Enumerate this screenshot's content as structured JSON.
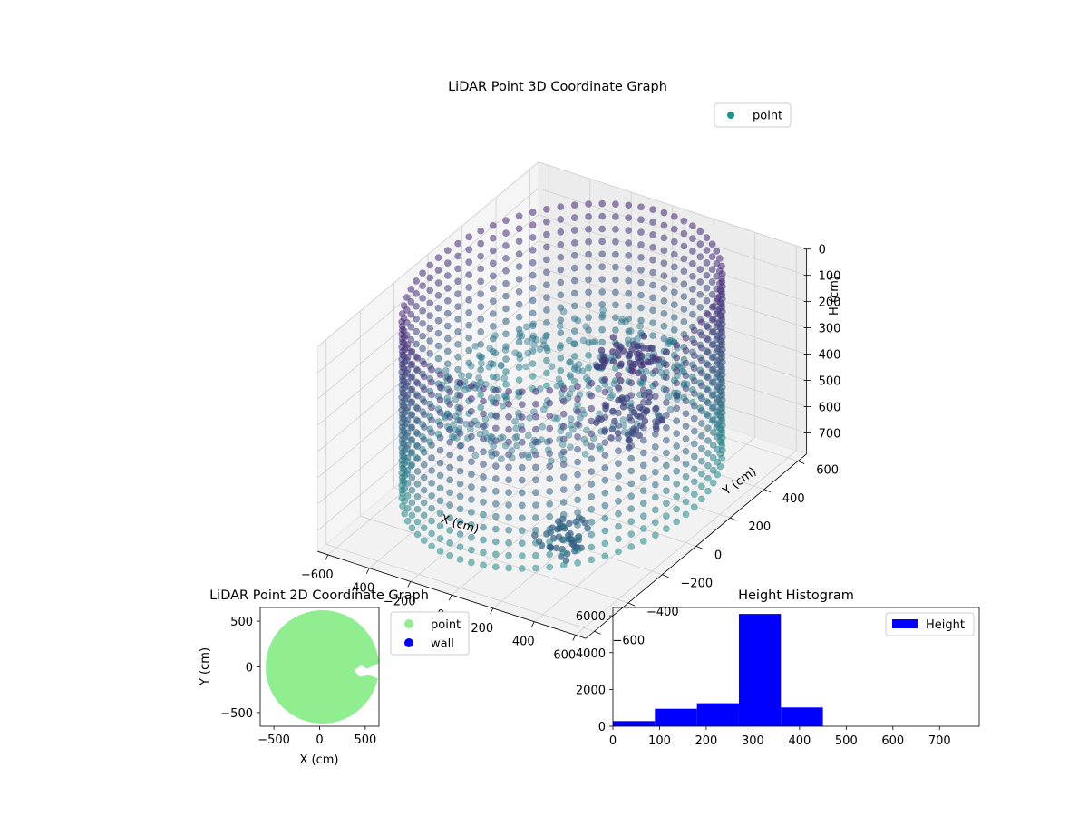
{
  "chart_data": [
    {
      "type": "scatter",
      "projection": "3d",
      "title": "LiDAR Point 3D Coordinate Graph",
      "xlabel": "X (cm)",
      "ylabel": "Y (cm)",
      "zlabel": "H (cm)",
      "xlim": [
        -650,
        650
      ],
      "ylim": [
        -650,
        650
      ],
      "zlim": [
        780,
        0
      ],
      "z_axis_inverted": true,
      "xticks": [
        -600,
        -400,
        -200,
        0,
        200,
        400,
        600
      ],
      "yticks": [
        -600,
        -400,
        -200,
        0,
        200,
        400,
        600
      ],
      "zticks": [
        0,
        100,
        200,
        300,
        400,
        500,
        600,
        700
      ],
      "legend": {
        "entries": [
          "point"
        ],
        "placement": "top-right"
      },
      "colors": {
        "point_marker": "#21918c",
        "colormap": "viridis-purple-teal"
      },
      "grid": true,
      "series": [
        {
          "name": "point",
          "wall": {
            "shape": "circle",
            "radius": 600,
            "z_min": 0,
            "z_max": 700,
            "color_at_top": "#482878",
            "color_at_bottom": "#21918c"
          },
          "floor_disc": {
            "radius": 480,
            "z": 340
          },
          "clusters": [
            {
              "x": 260,
              "y": 80,
              "z": 200,
              "spread": 90
            },
            {
              "x": 380,
              "y": -60,
              "z": 330,
              "spread": 110
            },
            {
              "x": 320,
              "y": -380,
              "z": 620,
              "spread": 90
            }
          ]
        }
      ]
    },
    {
      "type": "scatter",
      "title": "LiDAR Point 2D Coordinate Graph",
      "xlabel": "X (cm)",
      "ylabel": "Y (cm)",
      "xlim": [
        -650,
        650
      ],
      "ylim": [
        -650,
        650
      ],
      "xticks": [
        -500,
        0,
        500
      ],
      "yticks": [
        500,
        0,
        -500
      ],
      "legend": {
        "entries": [
          "point",
          "wall"
        ],
        "placement": "outside-right"
      },
      "colors": {
        "point": "#90ee90",
        "wall": "#0000ff"
      },
      "series": [
        {
          "name": "point",
          "shape": "filled-disc",
          "center": [
            0,
            0
          ],
          "radius": 620,
          "gap": {
            "x": [
              380,
              650
            ],
            "y": [
              -130,
              20
            ]
          }
        },
        {
          "name": "wall"
        }
      ]
    },
    {
      "type": "bar",
      "title": "Height Histogram",
      "xlim": [
        0,
        785
      ],
      "ylim": [
        0,
        6450
      ],
      "xticks": [
        0,
        100,
        200,
        300,
        400,
        500,
        600,
        700
      ],
      "yticks": [
        0,
        2000,
        4000,
        6000
      ],
      "legend": {
        "entries": [
          "Height"
        ],
        "placement": "top-right"
      },
      "colors": {
        "bar": "#0000ff"
      },
      "series": [
        {
          "name": "Height",
          "bins": [
            {
              "x0": 0,
              "x1": 90,
              "value": 280
            },
            {
              "x0": 90,
              "x1": 180,
              "value": 950
            },
            {
              "x0": 180,
              "x1": 270,
              "value": 1250
            },
            {
              "x0": 270,
              "x1": 360,
              "value": 6100
            },
            {
              "x0": 360,
              "x1": 450,
              "value": 1020
            },
            {
              "x0": 450,
              "x1": 540,
              "value": 0
            },
            {
              "x0": 540,
              "x1": 630,
              "value": 0
            },
            {
              "x0": 630,
              "x1": 720,
              "value": 0
            },
            {
              "x0": 720,
              "x1": 785,
              "value": 0
            }
          ]
        }
      ]
    }
  ]
}
